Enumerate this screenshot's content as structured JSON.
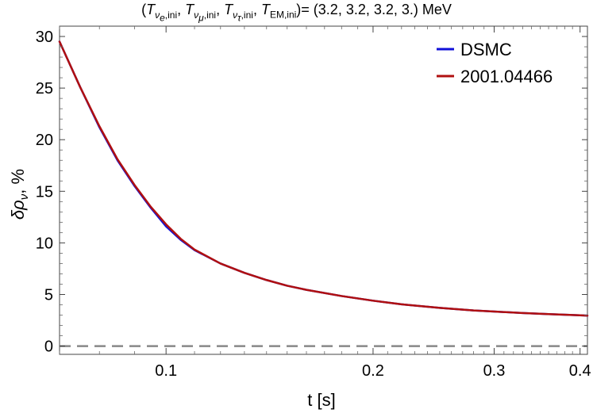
{
  "chart_data": {
    "type": "line",
    "title_parts": {
      "open": "(",
      "T": "T",
      "sub_nue": "ν",
      "sub_e": "e",
      "sub_ini": ",ini",
      "sub_numu": "ν",
      "sub_mu": "μ",
      "sub_nutau": "ν",
      "sub_tau": "τ",
      "sub_em": "EM,ini",
      "sep": ", ",
      "close": ")= (3.2, 3.2, 3.2, 3.) MeV"
    },
    "xlabel": "t [s]",
    "ylabel_delta": "δρ",
    "ylabel_sub": "ν",
    "ylabel_rest": ", %",
    "x_scale": "log",
    "xlim": [
      0.07,
      0.41
    ],
    "ylim": [
      -0.8,
      31.0
    ],
    "x_ticks": [
      0.1,
      0.2,
      0.3,
      0.4
    ],
    "x_tick_labels": [
      "0.1",
      "0.2",
      "0.3",
      "0.4"
    ],
    "y_ticks": [
      0,
      5,
      10,
      15,
      20,
      25,
      30
    ],
    "y_tick_labels": [
      "0",
      "5",
      "10",
      "15",
      "20",
      "25",
      "30"
    ],
    "legend_position": "top-right",
    "reference_line": {
      "y": 0,
      "style": "dashed",
      "color": "#888888"
    },
    "series": [
      {
        "name": "DSMC",
        "color": "#1010d8",
        "x": [
          0.07,
          0.075,
          0.08,
          0.085,
          0.09,
          0.095,
          0.1,
          0.105,
          0.11,
          0.12,
          0.13,
          0.14,
          0.15,
          0.16,
          0.18,
          0.2,
          0.22,
          0.25,
          0.28,
          0.3,
          0.33,
          0.36,
          0.4,
          0.41
        ],
        "y": [
          29.5,
          25.1,
          21.2,
          18.0,
          15.5,
          13.4,
          11.6,
          10.3,
          9.3,
          8.0,
          7.1,
          6.4,
          5.85,
          5.45,
          4.85,
          4.4,
          4.05,
          3.7,
          3.45,
          3.35,
          3.2,
          3.1,
          2.98,
          2.95
        ]
      },
      {
        "name": "2001.04466",
        "color": "#b01010",
        "x": [
          0.07,
          0.075,
          0.08,
          0.085,
          0.09,
          0.095,
          0.1,
          0.105,
          0.11,
          0.12,
          0.13,
          0.14,
          0.15,
          0.16,
          0.18,
          0.2,
          0.22,
          0.25,
          0.28,
          0.3,
          0.33,
          0.36,
          0.4,
          0.41
        ],
        "y": [
          29.5,
          25.1,
          21.3,
          18.1,
          15.6,
          13.5,
          11.8,
          10.4,
          9.35,
          8.0,
          7.1,
          6.4,
          5.85,
          5.45,
          4.85,
          4.4,
          4.05,
          3.7,
          3.45,
          3.35,
          3.2,
          3.1,
          2.98,
          2.95
        ]
      }
    ]
  }
}
